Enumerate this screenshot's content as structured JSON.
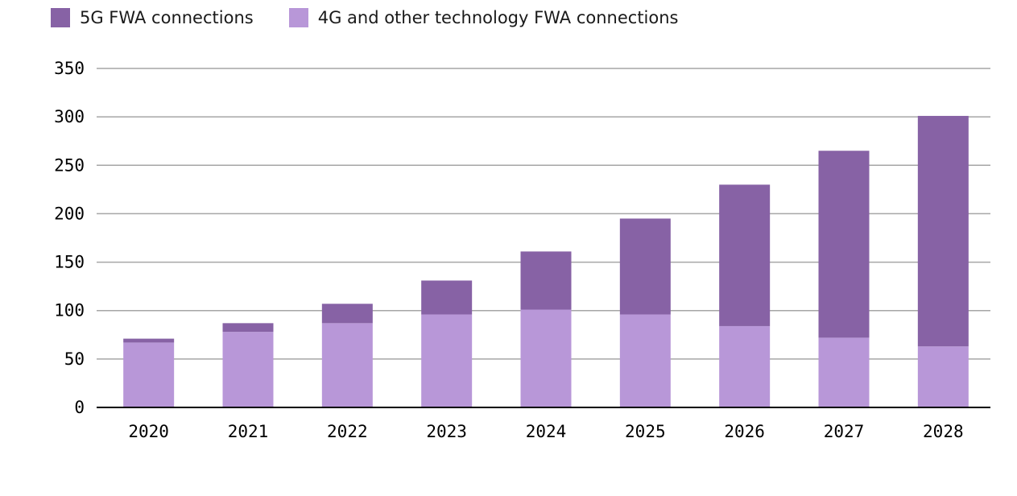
{
  "chart_data": {
    "type": "bar",
    "stacked": true,
    "title": "",
    "xlabel": "",
    "ylabel": "",
    "categories": [
      "2020",
      "2021",
      "2022",
      "2023",
      "2024",
      "2025",
      "2026",
      "2027",
      "2028"
    ],
    "series": [
      {
        "name": "4G and other technology FWA connections",
        "color": "#b897d8",
        "values": [
          67,
          78,
          87,
          96,
          101,
          96,
          84,
          72,
          63
        ]
      },
      {
        "name": "5G FWA connections",
        "color": "#8762a5",
        "values": [
          4,
          9,
          20,
          35,
          60,
          99,
          146,
          193,
          238
        ]
      }
    ],
    "ylim": [
      0,
      350
    ],
    "yticks": [
      "0",
      "50",
      "100",
      "150",
      "200",
      "250",
      "300",
      "350"
    ],
    "grid": true,
    "legend_placement": "top-left"
  }
}
